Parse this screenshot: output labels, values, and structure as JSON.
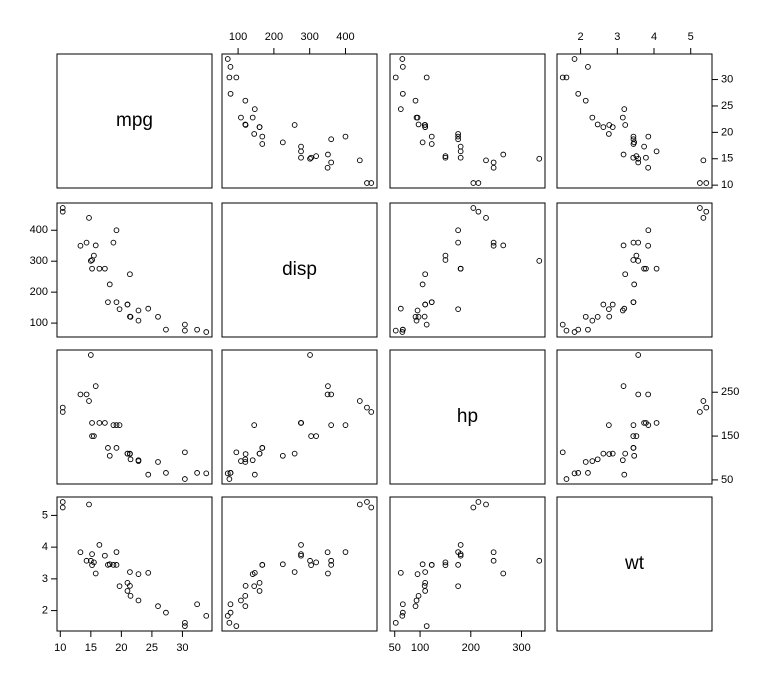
{
  "chart_data": {
    "type": "pairs",
    "variables": [
      {
        "name": "mpg",
        "values": [
          21.0,
          21.0,
          22.8,
          21.4,
          18.7,
          18.1,
          14.3,
          24.4,
          22.8,
          19.2,
          17.8,
          16.4,
          17.3,
          15.2,
          10.4,
          10.4,
          14.7,
          32.4,
          30.4,
          33.9,
          21.5,
          15.5,
          15.2,
          13.3,
          19.2,
          27.3,
          26.0,
          30.4,
          15.8,
          19.7,
          15.0,
          21.4
        ],
        "lim": [
          9.46,
          34.84
        ],
        "xticks": [
          10,
          15,
          20,
          25,
          30
        ],
        "yticks": [
          10,
          15,
          20,
          25,
          30
        ]
      },
      {
        "name": "disp",
        "values": [
          160,
          160,
          108,
          258,
          360,
          225,
          360,
          146.7,
          140.8,
          167.6,
          167.6,
          275.8,
          275.8,
          275.8,
          472,
          460,
          440,
          78.7,
          75.7,
          71.1,
          120.1,
          318,
          304,
          350,
          400,
          79,
          120.3,
          95.1,
          351,
          145,
          301,
          121
        ],
        "lim": [
          55.06,
          488.04
        ],
        "xticks": [
          100,
          200,
          300,
          400
        ],
        "yticks": [
          100,
          200,
          300,
          400
        ]
      },
      {
        "name": "hp",
        "values": [
          110,
          110,
          93,
          110,
          175,
          105,
          245,
          62,
          95,
          123,
          123,
          180,
          180,
          180,
          205,
          215,
          230,
          66,
          52,
          65,
          97,
          150,
          150,
          245,
          175,
          66,
          91,
          113,
          264,
          175,
          335,
          109
        ],
        "lim": [
          40.68,
          346.32
        ],
        "xticks": [
          50,
          100,
          200,
          300
        ],
        "yticks": [
          50,
          150,
          250
        ]
      },
      {
        "name": "wt",
        "values": [
          2.62,
          2.875,
          2.32,
          3.215,
          3.44,
          3.46,
          3.57,
          3.19,
          3.15,
          3.44,
          3.44,
          4.07,
          3.73,
          3.78,
          5.25,
          5.424,
          5.345,
          2.2,
          1.615,
          1.835,
          2.465,
          3.52,
          3.435,
          3.84,
          3.845,
          1.935,
          2.14,
          1.513,
          3.17,
          2.77,
          3.57,
          2.78
        ],
        "lim": [
          1.357,
          5.58
        ],
        "xticks": [
          2,
          3,
          4,
          5
        ],
        "yticks": [
          2,
          3,
          4,
          5
        ]
      }
    ]
  }
}
